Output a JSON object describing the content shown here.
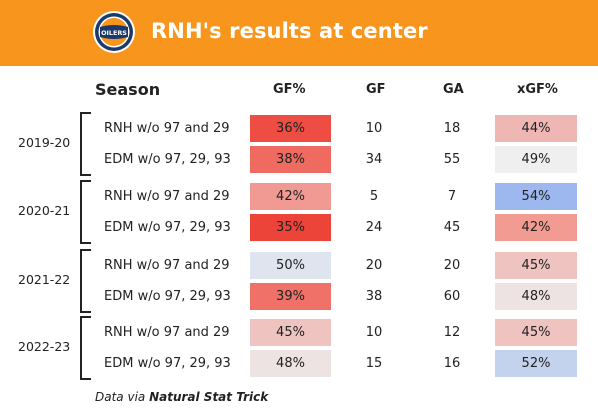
{
  "header": {
    "title": "RNH's results at center",
    "logo_text": "OILERS",
    "bg_color": "#f7951d"
  },
  "columns": {
    "season": "Season",
    "gf_pct": "GF%",
    "gf": "GF",
    "ga": "GA",
    "xgf_pct": "xGF%"
  },
  "seasons": [
    {
      "season": "2019-20",
      "rows": [
        {
          "label": "RNH w/o 97 and 29",
          "gf_pct": "36%",
          "gf": "10",
          "ga": "18",
          "xgf_pct": "44%",
          "gf_color": "#ee4d43",
          "xgf_color": "#efb7b3"
        },
        {
          "label": "EDM w/o 97, 29, 93",
          "gf_pct": "38%",
          "gf": "34",
          "ga": "55",
          "xgf_pct": "49%",
          "gf_color": "#ef6a60",
          "xgf_color": "#efefef"
        }
      ]
    },
    {
      "season": "2020-21",
      "rows": [
        {
          "label": "RNH w/o 97 and 29",
          "gf_pct": "42%",
          "gf": "5",
          "ga": "7",
          "xgf_pct": "54%",
          "gf_color": "#f19a93",
          "xgf_color": "#9db8ee"
        },
        {
          "label": "EDM w/o 97, 29, 93",
          "gf_pct": "35%",
          "gf": "24",
          "ga": "45",
          "xgf_pct": "42%",
          "gf_color": "#ec4439",
          "xgf_color": "#f19b92"
        }
      ]
    },
    {
      "season": "2021-22",
      "rows": [
        {
          "label": "RNH w/o 97 and 29",
          "gf_pct": "50%",
          "gf": "20",
          "ga": "20",
          "xgf_pct": "45%",
          "gf_color": "#dfe5ef",
          "xgf_color": "#efc3c0"
        },
        {
          "label": "EDM w/o 97, 29, 93",
          "gf_pct": "39%",
          "gf": "38",
          "ga": "60",
          "xgf_pct": "48%",
          "gf_color": "#ef7168",
          "xgf_color": "#ede3e2"
        }
      ]
    },
    {
      "season": "2022-23",
      "rows": [
        {
          "label": "RNH w/o 97 and 29",
          "gf_pct": "45%",
          "gf": "10",
          "ga": "12",
          "xgf_pct": "45%",
          "gf_color": "#efc3c0",
          "xgf_color": "#efc3c0"
        },
        {
          "label": "EDM w/o 97, 29, 93",
          "gf_pct": "48%",
          "gf": "15",
          "ga": "16",
          "xgf_pct": "52%",
          "gf_color": "#ede3e2",
          "xgf_color": "#c3d2ed"
        }
      ]
    }
  ],
  "source": {
    "prefix": "Data via ",
    "name": "Natural Stat Trick"
  }
}
